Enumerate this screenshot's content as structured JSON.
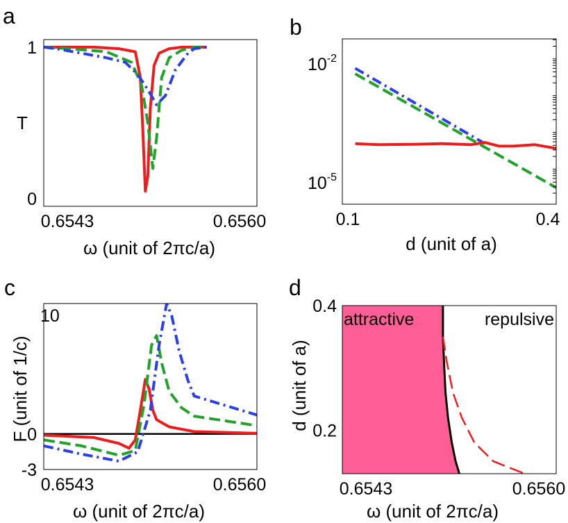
{
  "colors": {
    "red": "#ee1c1c",
    "green": "#21a32a",
    "blue": "#2b3ee8",
    "black": "#000000",
    "pink": "#ff5f96"
  },
  "chart_data": [
    {
      "id": "a",
      "type": "line",
      "panel_label": "a",
      "xlabel": "ω (unit of 2πc/a)",
      "ylabel": "T",
      "xlim": [
        0.6543,
        0.656
      ],
      "ylim": [
        -0.05,
        1.05
      ],
      "xticks": [
        "0.6543",
        "0.6560"
      ],
      "yticks": [
        "0",
        "1"
      ],
      "series": [
        {
          "name": "red-solid",
          "color": "#ee1c1c",
          "dash": "",
          "x": [
            0.6543,
            0.6547,
            0.6549,
            0.65503,
            0.65507,
            0.65509,
            0.65511,
            0.65513,
            0.65515,
            0.65518,
            0.65522,
            0.6553,
            0.6554,
            0.6556
          ],
          "y": [
            1.0,
            1.0,
            0.99,
            0.97,
            0.8,
            0.45,
            0.05,
            0.15,
            0.6,
            0.88,
            0.96,
            0.99,
            1.0,
            1.0
          ]
        },
        {
          "name": "green-dash",
          "color": "#21a32a",
          "dash": "16,7",
          "x": [
            0.6543,
            0.6545,
            0.6548,
            0.655,
            0.65508,
            0.65513,
            0.65517,
            0.6552,
            0.65524,
            0.6553,
            0.6554,
            0.6555,
            0.6556
          ],
          "y": [
            1.0,
            0.99,
            0.97,
            0.9,
            0.75,
            0.5,
            0.2,
            0.4,
            0.8,
            0.93,
            0.98,
            1.0,
            1.0
          ]
        },
        {
          "name": "blue-dashdot",
          "color": "#2b3ee8",
          "dash": "14,6,3,6",
          "x": [
            0.6543,
            0.6544,
            0.6546,
            0.6548,
            0.65495,
            0.65505,
            0.65513,
            0.6552,
            0.65527,
            0.65535,
            0.65545,
            0.6555,
            0.6556
          ],
          "y": [
            1.0,
            0.99,
            0.96,
            0.93,
            0.9,
            0.82,
            0.72,
            0.62,
            0.68,
            0.85,
            0.96,
            0.99,
            1.0
          ]
        }
      ]
    },
    {
      "id": "b",
      "type": "line",
      "panel_label": "b",
      "xlabel": "d (unit of a)",
      "ylabel": "",
      "xlim": [
        0.1,
        0.4
      ],
      "ylim_log10": [
        -6,
        -1.5
      ],
      "xticks": [
        "0.1",
        "0.4"
      ],
      "yticks": [
        {
          "base": "10",
          "exp": "-2",
          "value_log10": -2
        },
        {
          "base": "10",
          "exp": "-5",
          "value_log10": -5
        }
      ],
      "series": [
        {
          "name": "blue-dashdot",
          "color": "#2b3ee8",
          "dash": "14,6,3,6",
          "x": [
            0.118,
            0.3
          ],
          "y_log10": [
            -2.3,
            -4.35
          ]
        },
        {
          "name": "green-dash",
          "color": "#21a32a",
          "dash": "16,7",
          "x": [
            0.118,
            0.4
          ],
          "y_log10": [
            -2.45,
            -5.55
          ]
        },
        {
          "name": "red-solid",
          "color": "#ee1c1c",
          "dash": "",
          "x": [
            0.118,
            0.15,
            0.2,
            0.24,
            0.28,
            0.3,
            0.32,
            0.34,
            0.37,
            0.4
          ],
          "y_log10": [
            -4.35,
            -4.38,
            -4.37,
            -4.35,
            -4.38,
            -4.32,
            -4.42,
            -4.42,
            -4.38,
            -4.48
          ]
        }
      ]
    },
    {
      "id": "c",
      "type": "line",
      "panel_label": "c",
      "xlabel": "ω (unit of 2πc/a)",
      "ylabel": "F (unit of 1/c)",
      "xlim": [
        0.6543,
        0.656
      ],
      "ylim": [
        -3,
        11
      ],
      "xticks": [
        "0.6543",
        "0.6560"
      ],
      "yticks": [
        "-3",
        "0",
        "10"
      ],
      "series": [
        {
          "name": "zero-line",
          "color": "#000000",
          "dash": "",
          "width": 2.5,
          "x": [
            0.6543,
            0.656
          ],
          "y": [
            0,
            0
          ]
        },
        {
          "name": "red-solid",
          "color": "#ee1c1c",
          "dash": "",
          "x": [
            0.6543,
            0.6547,
            0.6549,
            0.65498,
            0.65503,
            0.65507,
            0.65511,
            0.65514,
            0.65517,
            0.6552,
            0.6553,
            0.6555,
            0.656
          ],
          "y": [
            -0.1,
            -0.3,
            -0.8,
            -1.2,
            -0.5,
            2.0,
            4.6,
            3.8,
            2.0,
            1.2,
            0.6,
            0.2,
            0.05
          ]
        },
        {
          "name": "green-dash",
          "color": "#21a32a",
          "dash": "16,7",
          "x": [
            0.6543,
            0.6546,
            0.6549,
            0.65503,
            0.6551,
            0.65516,
            0.6552,
            0.65524,
            0.6553,
            0.6554,
            0.6555,
            0.656
          ],
          "y": [
            -0.5,
            -1.0,
            -1.8,
            -1.4,
            2.5,
            7.5,
            8.3,
            6.0,
            3.6,
            2.2,
            1.5,
            0.7
          ]
        },
        {
          "name": "blue-dashdot",
          "color": "#2b3ee8",
          "dash": "14,6,3,6",
          "x": [
            0.6543,
            0.6546,
            0.6549,
            0.65505,
            0.65515,
            0.65522,
            0.65528,
            0.65532,
            0.65538,
            0.65545,
            0.6555,
            0.656
          ],
          "y": [
            -1.0,
            -1.7,
            -2.3,
            -1.5,
            2.0,
            7.5,
            11.0,
            10.0,
            7.0,
            4.5,
            3.2,
            1.6
          ]
        }
      ]
    },
    {
      "id": "d",
      "type": "area",
      "panel_label": "d",
      "xlabel": "ω (unit of 2πc/a)",
      "ylabel": "d (unit of a)",
      "xlim": [
        0.6543,
        0.656
      ],
      "ylim": [
        0.13,
        0.4
      ],
      "xticks": [
        "0.6543",
        "0.6560"
      ],
      "yticks": [
        "0.2",
        "0.4"
      ],
      "annotations": {
        "left": "attractive",
        "right": "repulsive"
      },
      "boundary": {
        "name": "black-boundary",
        "color": "#000000",
        "x": [
          0.6551,
          0.6551,
          0.65511,
          0.65512,
          0.65514,
          0.65517,
          0.6552,
          0.65523
        ],
        "y": [
          0.4,
          0.35,
          0.3,
          0.26,
          0.22,
          0.18,
          0.15,
          0.13
        ]
      },
      "series": [
        {
          "name": "red-dash",
          "color": "#ee1c1c",
          "dash": "20,8",
          "x": [
            0.6551,
            0.65513,
            0.65518,
            0.65525,
            0.65535,
            0.6555,
            0.65575
          ],
          "y": [
            0.35,
            0.31,
            0.26,
            0.22,
            0.18,
            0.15,
            0.13
          ]
        }
      ]
    }
  ]
}
